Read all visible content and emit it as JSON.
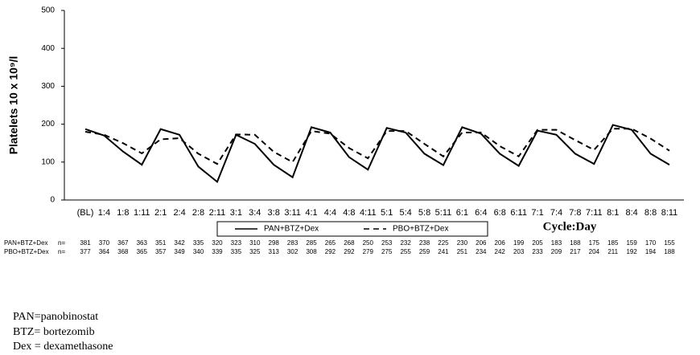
{
  "chart_data": {
    "type": "line",
    "y_label": "Platelets 10 x 10⁹/l",
    "x_label": "Cycle:Day",
    "categories": [
      "(BL)",
      "1:4",
      "1:8",
      "1:11",
      "2:1",
      "2:4",
      "2:8",
      "2:11",
      "3:1",
      "3:4",
      "3:8",
      "3:11",
      "4:1",
      "4:4",
      "4:8",
      "4:11",
      "5:1",
      "5:4",
      "5:8",
      "5:11",
      "6:1",
      "6:4",
      "6:8",
      "6:11",
      "7:1",
      "7:4",
      "7:8",
      "7:11",
      "8:1",
      "8:4",
      "8:8",
      "8:11"
    ],
    "series": [
      {
        "name": "PAN+BTZ+Dex",
        "color": "#000000",
        "line_style": "solid",
        "values": [
          187,
          170,
          128,
          93,
          187,
          172,
          88,
          48,
          172,
          148,
          93,
          60,
          192,
          178,
          113,
          80,
          190,
          178,
          122,
          92,
          192,
          175,
          122,
          90,
          183,
          172,
          122,
          95,
          198,
          185,
          122,
          93
        ]
      },
      {
        "name": "PBO+BTZ+Dex",
        "color": "#000000",
        "line_style": "dashed",
        "values": [
          180,
          172,
          150,
          123,
          160,
          163,
          122,
          95,
          173,
          172,
          127,
          100,
          182,
          175,
          137,
          110,
          182,
          182,
          148,
          115,
          178,
          178,
          142,
          115,
          185,
          185,
          158,
          132,
          188,
          188,
          162,
          130
        ]
      }
    ],
    "ylim": [
      0,
      500
    ],
    "yticks": [
      0,
      100,
      200,
      300,
      400,
      500
    ],
    "grid": false,
    "n_table": [
      {
        "label": "PAN+BTZ+Dex",
        "n_label": "n=",
        "values": [
          381,
          370,
          367,
          363,
          351,
          342,
          335,
          320,
          323,
          310,
          298,
          283,
          285,
          265,
          268,
          250,
          253,
          232,
          238,
          225,
          230,
          206,
          206,
          199,
          205,
          183,
          188,
          175,
          185,
          159,
          170,
          155
        ]
      },
      {
        "label": "PBO+BTZ+Dex",
        "n_label": "n=",
        "values": [
          377,
          364,
          368,
          365,
          357,
          349,
          340,
          339,
          335,
          325,
          313,
          302,
          308,
          292,
          292,
          279,
          275,
          255,
          259,
          241,
          251,
          234,
          242,
          203,
          233,
          209,
          217,
          204,
          211,
          192,
          194,
          188
        ]
      }
    ]
  },
  "footnotes": [
    "PAN=panobinostat",
    "BTZ= bortezomib",
    "Dex = dexamethasone"
  ]
}
